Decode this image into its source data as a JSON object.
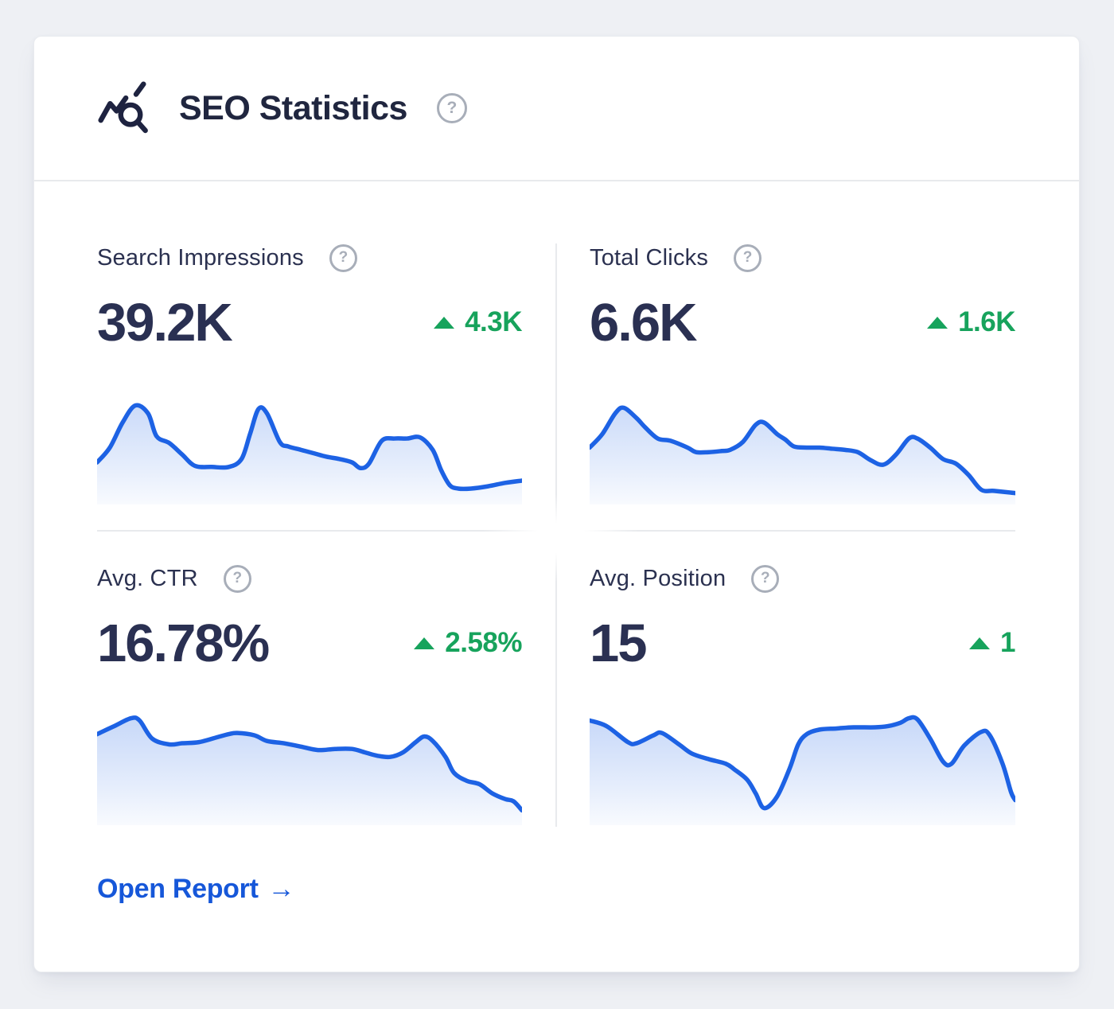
{
  "header": {
    "title": "SEO Statistics",
    "icon": "seo-analytics-icon"
  },
  "help_glyph": "?",
  "metrics": [
    {
      "id": "search-impressions",
      "label": "Search Impressions",
      "value": "39.2K",
      "delta": "4.3K",
      "delta_direction": "up"
    },
    {
      "id": "total-clicks",
      "label": "Total Clicks",
      "value": "6.6K",
      "delta": "1.6K",
      "delta_direction": "up"
    },
    {
      "id": "avg-ctr",
      "label": "Avg. CTR",
      "value": "16.78%",
      "delta": "2.58%",
      "delta_direction": "up"
    },
    {
      "id": "avg-position",
      "label": "Avg. Position",
      "value": "15",
      "delta": "1",
      "delta_direction": "up"
    }
  ],
  "footer": {
    "open_report_label": "Open Report",
    "arrow_glyph": "→"
  },
  "colors": {
    "page_bg": "#eef0f4",
    "card_bg": "#ffffff",
    "divider": "#e8eaed",
    "text_dark": "#2a3052",
    "help_gray": "#a8aeb9",
    "accent_blue": "#1d62e4",
    "positive_green": "#17a35c",
    "link_blue": "#1657d9"
  },
  "chart_data": [
    {
      "type": "area",
      "metric": "Search Impressions",
      "legend": "none",
      "axes": "hidden sparkline, normalized 0-100 both axes",
      "points": [
        [
          0,
          37
        ],
        [
          3,
          50
        ],
        [
          6,
          72
        ],
        [
          9,
          87
        ],
        [
          12,
          80
        ],
        [
          14,
          60
        ],
        [
          17,
          54
        ],
        [
          20,
          44
        ],
        [
          23,
          34
        ],
        [
          27,
          33
        ],
        [
          31,
          33
        ],
        [
          34,
          40
        ],
        [
          36,
          62
        ],
        [
          38,
          84
        ],
        [
          40,
          80
        ],
        [
          43,
          55
        ],
        [
          45,
          51
        ],
        [
          48,
          48
        ],
        [
          51,
          45
        ],
        [
          54,
          42
        ],
        [
          57,
          40
        ],
        [
          60,
          37
        ],
        [
          62,
          32
        ],
        [
          64,
          36
        ],
        [
          67,
          56
        ],
        [
          70,
          58
        ],
        [
          73,
          58
        ],
        [
          76,
          59
        ],
        [
          79,
          48
        ],
        [
          81,
          30
        ],
        [
          83,
          17
        ],
        [
          85,
          14
        ],
        [
          88,
          14
        ],
        [
          92,
          16
        ],
        [
          96,
          19
        ],
        [
          100,
          21
        ]
      ]
    },
    {
      "type": "area",
      "metric": "Total Clicks",
      "legend": "none",
      "axes": "hidden sparkline, normalized 0-100 both axes",
      "points": [
        [
          0,
          50
        ],
        [
          3,
          62
        ],
        [
          6,
          80
        ],
        [
          8,
          85
        ],
        [
          11,
          76
        ],
        [
          13,
          68
        ],
        [
          16,
          58
        ],
        [
          19,
          56
        ],
        [
          23,
          50
        ],
        [
          25,
          46
        ],
        [
          28,
          46
        ],
        [
          31,
          47
        ],
        [
          33,
          48
        ],
        [
          36,
          55
        ],
        [
          39,
          70
        ],
        [
          41,
          72
        ],
        [
          44,
          62
        ],
        [
          46,
          57
        ],
        [
          48,
          51
        ],
        [
          51,
          50
        ],
        [
          54,
          50
        ],
        [
          57,
          49
        ],
        [
          60,
          48
        ],
        [
          63,
          46
        ],
        [
          66,
          39
        ],
        [
          69,
          35
        ],
        [
          72,
          44
        ],
        [
          75,
          58
        ],
        [
          77,
          58
        ],
        [
          80,
          50
        ],
        [
          83,
          40
        ],
        [
          86,
          36
        ],
        [
          89,
          26
        ],
        [
          92,
          13
        ],
        [
          95,
          12
        ],
        [
          100,
          10
        ]
      ]
    },
    {
      "type": "area",
      "metric": "Avg. CTR",
      "legend": "none",
      "axes": "hidden sparkline, normalized 0-100 both axes",
      "points": [
        [
          0,
          80
        ],
        [
          4,
          87
        ],
        [
          8,
          94
        ],
        [
          10,
          92
        ],
        [
          13,
          76
        ],
        [
          17,
          71
        ],
        [
          20,
          72
        ],
        [
          24,
          73
        ],
        [
          28,
          77
        ],
        [
          31,
          80
        ],
        [
          33,
          81
        ],
        [
          37,
          79
        ],
        [
          40,
          74
        ],
        [
          44,
          72
        ],
        [
          48,
          69
        ],
        [
          52,
          66
        ],
        [
          56,
          67
        ],
        [
          60,
          67
        ],
        [
          63,
          64
        ],
        [
          66,
          61
        ],
        [
          69,
          60
        ],
        [
          72,
          64
        ],
        [
          75,
          73
        ],
        [
          77,
          78
        ],
        [
          79,
          74
        ],
        [
          82,
          60
        ],
        [
          84,
          46
        ],
        [
          87,
          39
        ],
        [
          90,
          36
        ],
        [
          93,
          28
        ],
        [
          96,
          23
        ],
        [
          98,
          21
        ],
        [
          100,
          13
        ]
      ]
    },
    {
      "type": "area",
      "metric": "Avg. Position",
      "legend": "none",
      "axes": "hidden sparkline, normalized 0-100 both axes",
      "points": [
        [
          0,
          92
        ],
        [
          4,
          87
        ],
        [
          9,
          73
        ],
        [
          11,
          72
        ],
        [
          15,
          79
        ],
        [
          17,
          81
        ],
        [
          21,
          71
        ],
        [
          24,
          63
        ],
        [
          28,
          58
        ],
        [
          32,
          54
        ],
        [
          34,
          49
        ],
        [
          37,
          40
        ],
        [
          39,
          28
        ],
        [
          41,
          15
        ],
        [
          44,
          25
        ],
        [
          47,
          50
        ],
        [
          49,
          71
        ],
        [
          51,
          80
        ],
        [
          54,
          84
        ],
        [
          58,
          85
        ],
        [
          62,
          86
        ],
        [
          67,
          86
        ],
        [
          70,
          87
        ],
        [
          73,
          90
        ],
        [
          75,
          94
        ],
        [
          77,
          93
        ],
        [
          80,
          76
        ],
        [
          83,
          56
        ],
        [
          85,
          54
        ],
        [
          88,
          70
        ],
        [
          92,
          82
        ],
        [
          94,
          79
        ],
        [
          97,
          54
        ],
        [
          99,
          29
        ],
        [
          100,
          22
        ]
      ]
    }
  ]
}
